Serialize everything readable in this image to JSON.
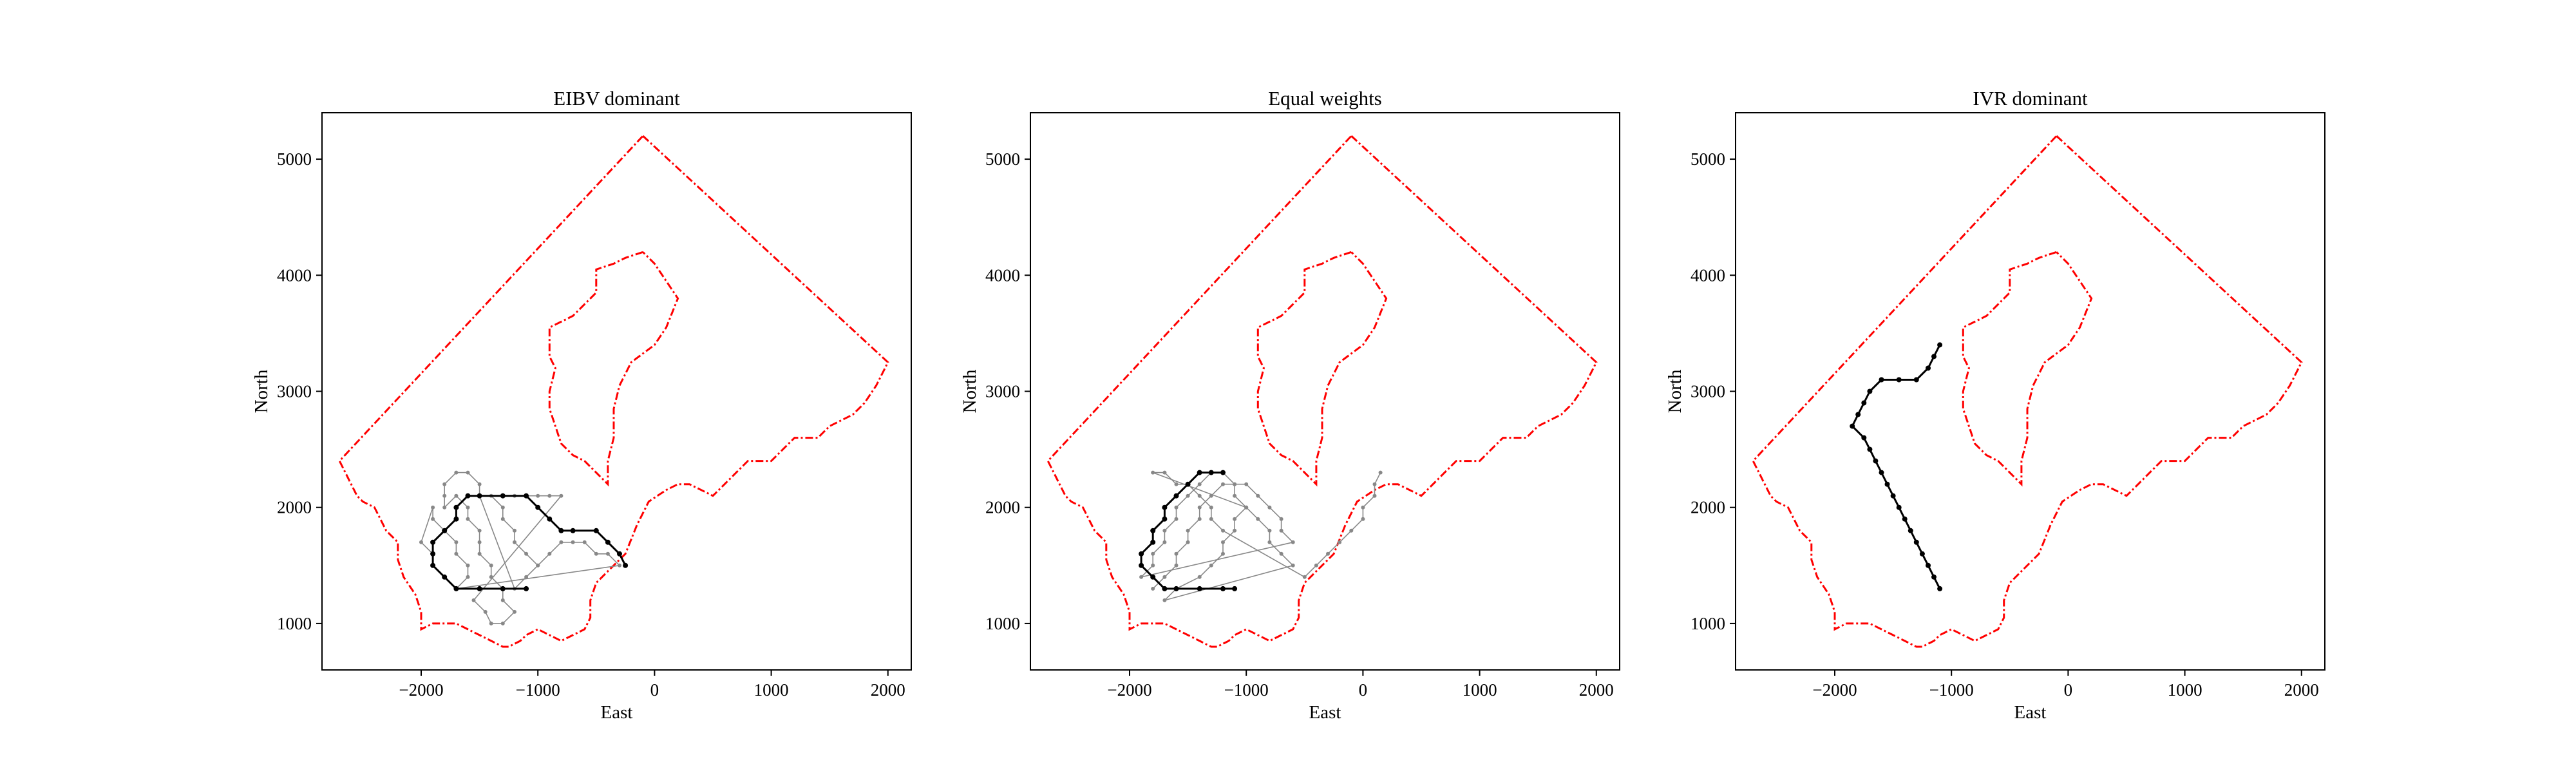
{
  "chart_data": [
    {
      "type": "line",
      "title": "EIBV dominant",
      "xlabel": "East",
      "ylabel": "North",
      "xlim": [
        -2850,
        2200
      ],
      "ylim": [
        600,
        5400
      ],
      "xticks": [
        -2000,
        -1000,
        0,
        1000,
        2000
      ],
      "xtick_labels": [
        "−2000",
        "−1000",
        "0",
        "1000",
        "2000"
      ],
      "yticks": [
        1000,
        2000,
        3000,
        4000,
        5000
      ],
      "ytick_labels": [
        "1000",
        "2000",
        "3000",
        "4000",
        "5000"
      ],
      "grid": false,
      "series": [
        {
          "role": "explored-edges",
          "color": "#888888",
          "points": [
            [
              -1000,
              1500
            ],
            [
              -1100,
              1600
            ],
            [
              -1200,
              1700
            ],
            [
              -1200,
              1800
            ],
            [
              -1300,
              1900
            ],
            [
              -1300,
              2000
            ],
            [
              -1400,
              2100
            ],
            [
              -1300,
              2100
            ],
            [
              -1200,
              2100
            ],
            [
              -1100,
              2100
            ],
            [
              -1000,
              2100
            ],
            [
              -900,
              2100
            ],
            [
              -800,
              2100
            ],
            [
              -1550,
              1200
            ],
            [
              -1450,
              1100
            ],
            [
              -1400,
              1000
            ],
            [
              -1300,
              1000
            ],
            [
              -1200,
              1100
            ],
            [
              -1300,
              1200
            ],
            [
              -1300,
              1300
            ],
            [
              -1400,
              1400
            ],
            [
              -1400,
              1500
            ],
            [
              -1500,
              1600
            ],
            [
              -1500,
              1700
            ],
            [
              -1500,
              1800
            ],
            [
              -1600,
              1900
            ],
            [
              -1600,
              2000
            ],
            [
              -1700,
              2100
            ],
            [
              -1800,
              2000
            ],
            [
              -1800,
              2100
            ],
            [
              -1800,
              2200
            ],
            [
              -1700,
              2300
            ],
            [
              -1600,
              2300
            ],
            [
              -1500,
              2200
            ],
            [
              -1500,
              2100
            ],
            [
              -1200,
              1300
            ],
            [
              -1100,
              1400
            ],
            [
              -1000,
              1500
            ],
            [
              -900,
              1600
            ],
            [
              -800,
              1700
            ],
            [
              -700,
              1700
            ],
            [
              -600,
              1700
            ],
            [
              -500,
              1600
            ],
            [
              -400,
              1600
            ],
            [
              -300,
              1500
            ],
            [
              -1700,
              1300
            ],
            [
              -1600,
              1400
            ],
            [
              -1600,
              1500
            ],
            [
              -1700,
              1600
            ],
            [
              -1700,
              1700
            ],
            [
              -1800,
              1800
            ],
            [
              -1900,
              1900
            ],
            [
              -1900,
              2000
            ],
            [
              -2000,
              1700
            ],
            [
              -1900,
              1600
            ]
          ]
        },
        {
          "role": "final-path",
          "color": "#000000",
          "points": [
            [
              -1100,
              1300
            ],
            [
              -1300,
              1300
            ],
            [
              -1500,
              1300
            ],
            [
              -1700,
              1300
            ],
            [
              -1800,
              1400
            ],
            [
              -1900,
              1500
            ],
            [
              -1900,
              1600
            ],
            [
              -1900,
              1700
            ],
            [
              -1800,
              1800
            ],
            [
              -1700,
              1900
            ],
            [
              -1700,
              2000
            ],
            [
              -1600,
              2100
            ],
            [
              -1500,
              2100
            ],
            [
              -1300,
              2100
            ],
            [
              -1100,
              2100
            ],
            [
              -1000,
              2000
            ],
            [
              -900,
              1900
            ],
            [
              -800,
              1800
            ],
            [
              -700,
              1800
            ],
            [
              -500,
              1800
            ],
            [
              -400,
              1700
            ],
            [
              -300,
              1600
            ],
            [
              -250,
              1500
            ]
          ]
        }
      ]
    },
    {
      "type": "line",
      "title": "Equal weights",
      "xlabel": "East",
      "ylabel": "North",
      "xlim": [
        -2850,
        2200
      ],
      "ylim": [
        600,
        5400
      ],
      "xticks": [
        -2000,
        -1000,
        0,
        1000,
        2000
      ],
      "xtick_labels": [
        "−2000",
        "−1000",
        "0",
        "1000",
        "2000"
      ],
      "yticks": [
        1000,
        2000,
        3000,
        4000,
        5000
      ],
      "ytick_labels": [
        "1000",
        "2000",
        "3000",
        "4000",
        "5000"
      ],
      "grid": false,
      "series": [
        {
          "role": "explored-edges",
          "color": "#888888",
          "points": [
            [
              -1800,
              1300
            ],
            [
              -1700,
              1400
            ],
            [
              -1600,
              1500
            ],
            [
              -1600,
              1600
            ],
            [
              -1500,
              1700
            ],
            [
              -1500,
              1800
            ],
            [
              -1400,
              1900
            ],
            [
              -1400,
              2000
            ],
            [
              -1300,
              2100
            ],
            [
              -1200,
              2200
            ],
            [
              -1100,
              2200
            ],
            [
              -1000,
              2200
            ],
            [
              -900,
              2100
            ],
            [
              -800,
              2000
            ],
            [
              -700,
              1900
            ],
            [
              -700,
              1800
            ],
            [
              -600,
              1700
            ],
            [
              -1900,
              1400
            ],
            [
              -1800,
              1500
            ],
            [
              -1800,
              1600
            ],
            [
              -1700,
              1700
            ],
            [
              -1700,
              1800
            ],
            [
              -1600,
              1900
            ],
            [
              -1600,
              2000
            ],
            [
              -1500,
              2100
            ],
            [
              -1400,
              2200
            ],
            [
              -1300,
              2300
            ],
            [
              -1200,
              2300
            ],
            [
              -1100,
              2200
            ],
            [
              -1100,
              2100
            ],
            [
              -1000,
              2000
            ],
            [
              -900,
              1900
            ],
            [
              -800,
              1800
            ],
            [
              -800,
              1700
            ],
            [
              -700,
              1600
            ],
            [
              -600,
              1500
            ],
            [
              -1700,
              1200
            ],
            [
              -1600,
              1300
            ],
            [
              -1400,
              1400
            ],
            [
              -1300,
              1500
            ],
            [
              -1200,
              1600
            ],
            [
              -1200,
              1700
            ],
            [
              -1100,
              1800
            ],
            [
              -1100,
              1900
            ],
            [
              -1000,
              2000
            ],
            [
              -1800,
              2300
            ],
            [
              -1700,
              2300
            ],
            [
              -1600,
              2200
            ],
            [
              -1500,
              2200
            ],
            [
              -1400,
              2100
            ],
            [
              -1300,
              2000
            ],
            [
              -1300,
              1900
            ],
            [
              -1200,
              1800
            ],
            [
              -500,
              1400
            ],
            [
              -400,
              1500
            ],
            [
              -300,
              1600
            ],
            [
              -200,
              1700
            ],
            [
              -100,
              1800
            ],
            [
              0,
              1900
            ],
            [
              0,
              2000
            ],
            [
              100,
              2100
            ],
            [
              100,
              2200
            ],
            [
              150,
              2300
            ]
          ]
        },
        {
          "role": "final-path",
          "color": "#000000",
          "points": [
            [
              -1100,
              1300
            ],
            [
              -1200,
              1300
            ],
            [
              -1400,
              1300
            ],
            [
              -1600,
              1300
            ],
            [
              -1700,
              1300
            ],
            [
              -1800,
              1400
            ],
            [
              -1900,
              1500
            ],
            [
              -1900,
              1600
            ],
            [
              -1800,
              1700
            ],
            [
              -1800,
              1800
            ],
            [
              -1700,
              1900
            ],
            [
              -1700,
              2000
            ],
            [
              -1600,
              2100
            ],
            [
              -1500,
              2200
            ],
            [
              -1400,
              2300
            ],
            [
              -1300,
              2300
            ],
            [
              -1200,
              2300
            ]
          ]
        }
      ]
    },
    {
      "type": "line",
      "title": "IVR dominant",
      "xlabel": "East",
      "ylabel": "North",
      "xlim": [
        -2850,
        2200
      ],
      "ylim": [
        600,
        5400
      ],
      "xticks": [
        -2000,
        -1000,
        0,
        1000,
        2000
      ],
      "xtick_labels": [
        "−2000",
        "−1000",
        "0",
        "1000",
        "2000"
      ],
      "yticks": [
        1000,
        2000,
        3000,
        4000,
        5000
      ],
      "ytick_labels": [
        "1000",
        "2000",
        "3000",
        "4000",
        "5000"
      ],
      "grid": false,
      "series": [
        {
          "role": "explored-edges",
          "color": "#888888",
          "points": []
        },
        {
          "role": "final-path",
          "color": "#000000",
          "points": [
            [
              -1100,
              1300
            ],
            [
              -1150,
              1400
            ],
            [
              -1200,
              1500
            ],
            [
              -1250,
              1600
            ],
            [
              -1300,
              1700
            ],
            [
              -1350,
              1800
            ],
            [
              -1400,
              1900
            ],
            [
              -1450,
              2000
            ],
            [
              -1500,
              2100
            ],
            [
              -1550,
              2200
            ],
            [
              -1600,
              2300
            ],
            [
              -1650,
              2400
            ],
            [
              -1700,
              2500
            ],
            [
              -1750,
              2600
            ],
            [
              -1850,
              2700
            ],
            [
              -1800,
              2800
            ],
            [
              -1750,
              2900
            ],
            [
              -1700,
              3000
            ],
            [
              -1600,
              3100
            ],
            [
              -1450,
              3100
            ],
            [
              -1300,
              3100
            ],
            [
              -1200,
              3200
            ],
            [
              -1150,
              3300
            ],
            [
              -1100,
              3400
            ]
          ]
        }
      ]
    }
  ],
  "boundary": {
    "color": "#ff0000",
    "outer": [
      [
        -100,
        5200
      ],
      [
        2000,
        3250
      ],
      [
        1900,
        3050
      ],
      [
        1800,
        2900
      ],
      [
        1700,
        2800
      ],
      [
        1500,
        2700
      ],
      [
        1400,
        2600
      ],
      [
        1200,
        2600
      ],
      [
        1100,
        2500
      ],
      [
        1000,
        2400
      ],
      [
        800,
        2400
      ],
      [
        700,
        2300
      ],
      [
        600,
        2200
      ],
      [
        500,
        2100
      ],
      [
        400,
        2150
      ],
      [
        300,
        2200
      ],
      [
        200,
        2200
      ],
      [
        100,
        2150
      ],
      [
        -50,
        2050
      ],
      [
        -150,
        1850
      ],
      [
        -250,
        1600
      ],
      [
        -400,
        1450
      ],
      [
        -500,
        1350
      ],
      [
        -550,
        1200
      ],
      [
        -550,
        1050
      ],
      [
        -600,
        950
      ],
      [
        -700,
        900
      ],
      [
        -800,
        850
      ],
      [
        -900,
        900
      ],
      [
        -1000,
        950
      ],
      [
        -1100,
        900
      ],
      [
        -1150,
        850
      ],
      [
        -1250,
        800
      ],
      [
        -1300,
        800
      ],
      [
        -1400,
        850
      ],
      [
        -1500,
        900
      ],
      [
        -1600,
        950
      ],
      [
        -1700,
        1000
      ],
      [
        -1800,
        1000
      ],
      [
        -1900,
        1000
      ],
      [
        -2000,
        950
      ],
      [
        -2000,
        1100
      ],
      [
        -2050,
        1250
      ],
      [
        -2150,
        1400
      ],
      [
        -2200,
        1550
      ],
      [
        -2200,
        1700
      ],
      [
        -2300,
        1800
      ],
      [
        -2350,
        1900
      ],
      [
        -2400,
        2000
      ],
      [
        -2500,
        2050
      ],
      [
        -2550,
        2100
      ],
      [
        -2600,
        2200
      ],
      [
        -2700,
        2400
      ],
      [
        -100,
        5200
      ]
    ],
    "inner": [
      [
        -100,
        4200
      ],
      [
        -250,
        4150
      ],
      [
        -350,
        4100
      ],
      [
        -500,
        4050
      ],
      [
        -500,
        3850
      ],
      [
        -600,
        3750
      ],
      [
        -700,
        3650
      ],
      [
        -800,
        3600
      ],
      [
        -900,
        3550
      ],
      [
        -900,
        3300
      ],
      [
        -850,
        3200
      ],
      [
        -900,
        3000
      ],
      [
        -900,
        2850
      ],
      [
        -850,
        2700
      ],
      [
        -800,
        2550
      ],
      [
        -700,
        2450
      ],
      [
        -600,
        2400
      ],
      [
        -400,
        2200
      ],
      [
        -400,
        2400
      ],
      [
        -350,
        2600
      ],
      [
        -350,
        2850
      ],
      [
        -300,
        3050
      ],
      [
        -200,
        3250
      ],
      [
        0,
        3400
      ],
      [
        100,
        3550
      ],
      [
        200,
        3800
      ],
      [
        100,
        3950
      ],
      [
        0,
        4100
      ],
      [
        -100,
        4200
      ]
    ]
  }
}
